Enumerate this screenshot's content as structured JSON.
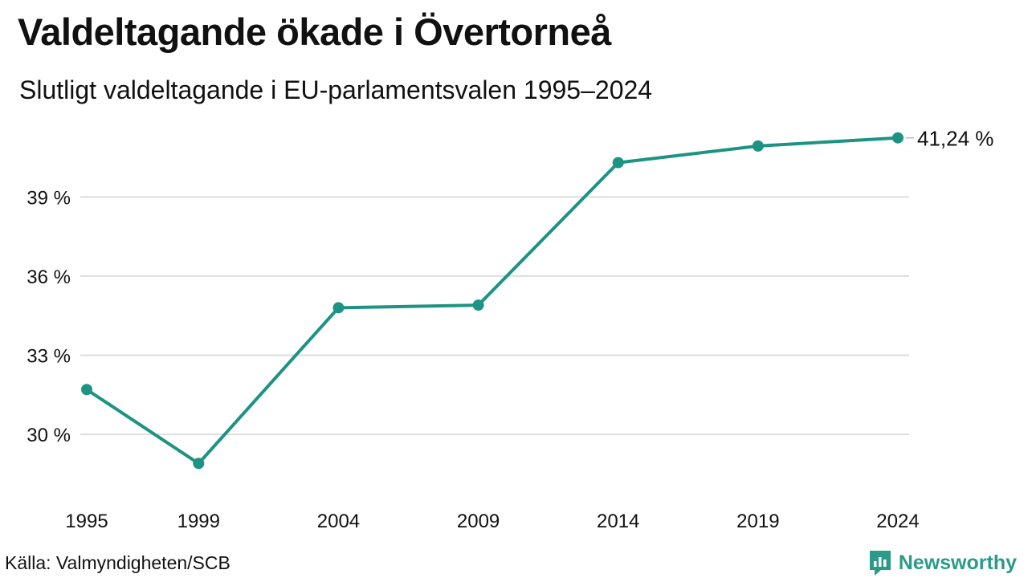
{
  "title": "Valdeltagande ökade i Övertorneå",
  "subtitle": "Slutligt valdeltagande i EU-parlamentsvalen 1995–2024",
  "source": "Källa: Valmyndigheten/SCB",
  "brand": {
    "name": "Newsworthy",
    "color": "#2a9b8a"
  },
  "chart_data": {
    "type": "line",
    "x": [
      1995,
      1999,
      2004,
      2009,
      2014,
      2019,
      2024
    ],
    "x_tick_labels": [
      "1995",
      "1999",
      "2004",
      "2009",
      "2014",
      "2019",
      "2024"
    ],
    "series": [
      {
        "values": [
          31.7,
          28.9,
          34.8,
          34.9,
          40.3,
          40.93,
          41.24
        ],
        "color": "#1d9383"
      }
    ],
    "y_ticks": [
      30,
      33,
      36,
      39
    ],
    "y_tick_labels": [
      "30 %",
      "33 %",
      "36 %",
      "39 %"
    ],
    "ylim": [
      28.3,
      41.9
    ],
    "end_label": "41,24 %",
    "grid": "horizontal",
    "xlabel": "",
    "ylabel": ""
  }
}
